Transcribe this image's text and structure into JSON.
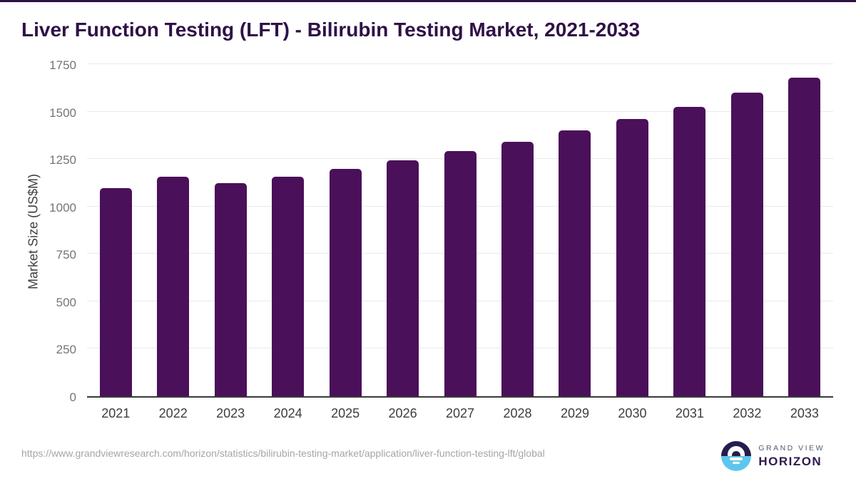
{
  "page": {
    "title": "Liver Function Testing (LFT) - Bilirubin Testing Market, 2021-2033",
    "source_url": "https://www.grandviewresearch.com/horizon/statistics/bilirubin-testing-market/application/liver-function-testing-lft/global"
  },
  "logo": {
    "line1": "GRAND VIEW",
    "line2": "HORIZON"
  },
  "colors": {
    "bar": "#4a1059",
    "title": "#2e1247",
    "top_border": "#2d1245",
    "gridline": "#eaeaea",
    "axis_line": "#3a3a3a",
    "tick_label": "#757575",
    "x_label": "#3d3d3d",
    "logo_purple": "#271c4d",
    "logo_blue": "#5ec6ee"
  },
  "chart_data": {
    "type": "bar",
    "title": "Liver Function Testing (LFT) - Bilirubin Testing Market, 2021-2033",
    "categories": [
      "2021",
      "2022",
      "2023",
      "2024",
      "2025",
      "2026",
      "2027",
      "2028",
      "2029",
      "2030",
      "2031",
      "2032",
      "2033"
    ],
    "values": [
      1096,
      1155,
      1122,
      1158,
      1197,
      1244,
      1292,
      1342,
      1400,
      1460,
      1526,
      1599,
      1678
    ],
    "xlabel": "",
    "ylabel": "Market Size (US$M)",
    "ylim": [
      0,
      1750
    ],
    "yticks": [
      0,
      250,
      500,
      750,
      1000,
      1250,
      1500,
      1750
    ],
    "grid": true,
    "legend": false,
    "bar_color": "#4a1059"
  }
}
